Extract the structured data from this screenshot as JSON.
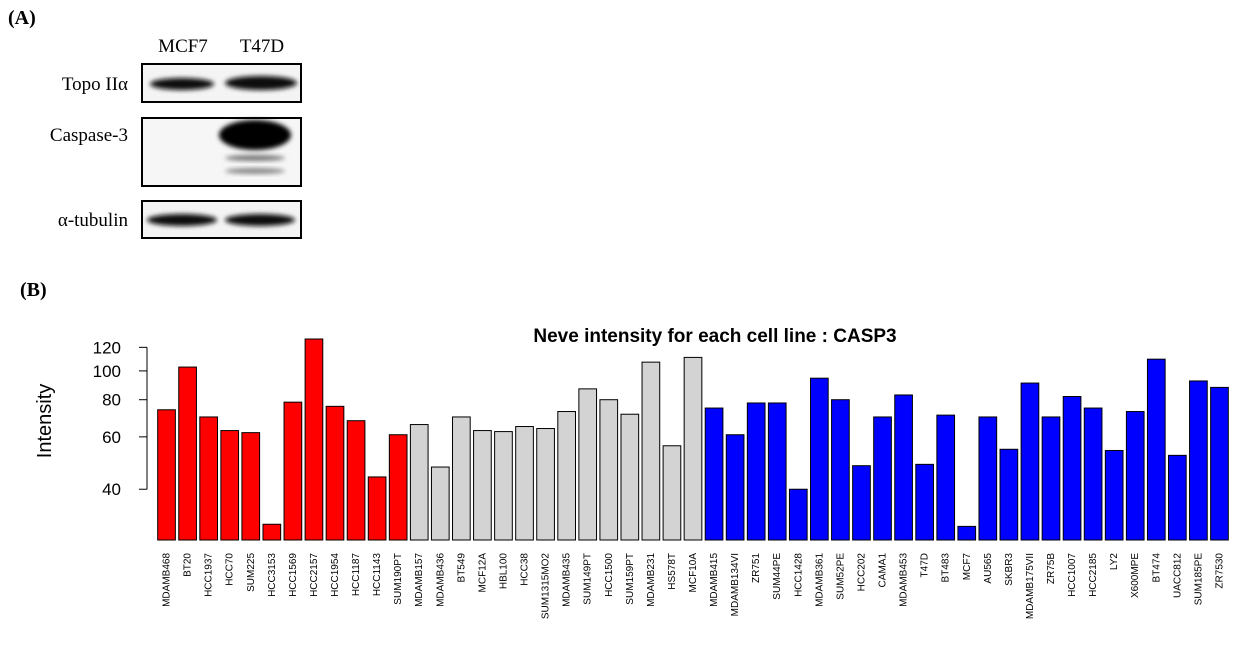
{
  "panel_a": {
    "label": "(A)",
    "lanes": [
      "MCF7",
      "T47D"
    ],
    "rows": [
      "Topo IIα",
      "Caspase-3",
      "α-tubulin"
    ]
  },
  "panel_b": {
    "label": "(B)"
  },
  "chart_data": {
    "type": "bar",
    "title": "Neve intensity for each cell line : CASP3",
    "y_label": "Intensity",
    "log_scale": true,
    "categories": [
      "MDAMB468",
      "BT20",
      "HCC1937",
      "HCC70",
      "SUM225",
      "HCC3153",
      "HCC1569",
      "HCC2157",
      "HCC1954",
      "HCC1187",
      "HCC1143",
      "SUM190PT",
      "MDAMB157",
      "MDAMB436",
      "BT549",
      "MCF12A",
      "HBL100",
      "HCC38",
      "SUM1315MO2",
      "MDAMB435",
      "SUM149PT",
      "HCC1500",
      "SUM159PT",
      "MDAMB231",
      "HS578T",
      "MCF10A",
      "MDAMB415",
      "MDAMB134VI",
      "ZR751",
      "SUM44PE",
      "HCC1428",
      "MDAMB361",
      "SUM52PE",
      "HCC202",
      "CAMA1",
      "MDAMB453",
      "T47D",
      "BT483",
      "MCF7",
      "AU565",
      "SKBR3",
      "MDAMB175VII",
      "ZR75B",
      "HCC1007",
      "HCC2185",
      "LY2",
      "X600MPE",
      "BT474",
      "UACC812",
      "SUM185PE",
      "ZR7530"
    ],
    "values": [
      74,
      103,
      70,
      63,
      62,
      30.5,
      78.5,
      128,
      76,
      68,
      44,
      61,
      66,
      47.5,
      70,
      63,
      62.5,
      65,
      64,
      73,
      87,
      80,
      71.5,
      107,
      56,
      111,
      75,
      61,
      78,
      78,
      40,
      94.5,
      80,
      48,
      70,
      83,
      48.5,
      71,
      30,
      70,
      54.5,
      91,
      70,
      82,
      75,
      54,
      73,
      109.5,
      52,
      92.5,
      88
    ],
    "colors": [
      "#ff0000",
      "#ff0000",
      "#ff0000",
      "#ff0000",
      "#ff0000",
      "#ff0000",
      "#ff0000",
      "#ff0000",
      "#ff0000",
      "#ff0000",
      "#ff0000",
      "#ff0000",
      "#d3d3d3",
      "#d3d3d3",
      "#d3d3d3",
      "#d3d3d3",
      "#d3d3d3",
      "#d3d3d3",
      "#d3d3d3",
      "#d3d3d3",
      "#d3d3d3",
      "#d3d3d3",
      "#d3d3d3",
      "#d3d3d3",
      "#d3d3d3",
      "#d3d3d3",
      "#0000ff",
      "#0000ff",
      "#0000ff",
      "#0000ff",
      "#0000ff",
      "#0000ff",
      "#0000ff",
      "#0000ff",
      "#0000ff",
      "#0000ff",
      "#0000ff",
      "#0000ff",
      "#0000ff",
      "#0000ff",
      "#0000ff",
      "#0000ff",
      "#0000ff",
      "#0000ff",
      "#0000ff",
      "#0000ff",
      "#0000ff",
      "#0000ff",
      "#0000ff",
      "#0000ff",
      "#0000ff"
    ],
    "ylim": [
      27,
      130
    ],
    "yticks": [
      40,
      60,
      80,
      100,
      120
    ]
  }
}
